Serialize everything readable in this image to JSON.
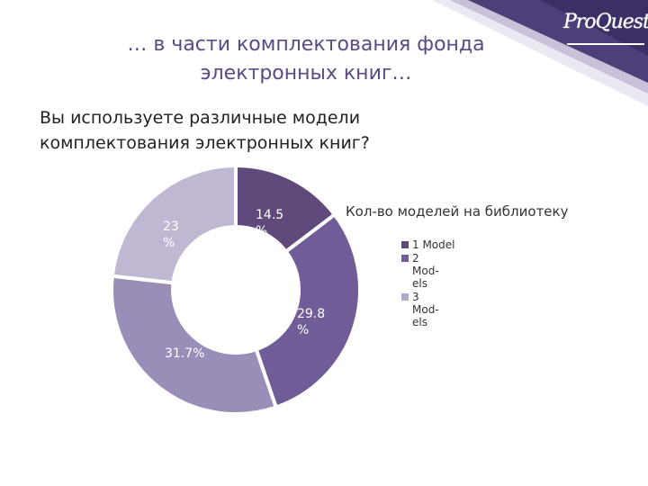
{
  "slide": {
    "title_line1": "… в части комплектования фонда",
    "title_line2": "электронных книг…",
    "question_line1": "Вы используете различные модели",
    "question_line2": "комплектования электронных книг?",
    "logo_text": "ProQuest"
  },
  "chart_data": {
    "type": "pie",
    "subtype": "donut",
    "title": "Кол-во моделей на библиотеку",
    "legend_position": "right",
    "categories": [
      "1 Model",
      "2 Mod- els",
      "3 Mod- els",
      ""
    ],
    "values": [
      14.5,
      29.8,
      31.7,
      23
    ],
    "data_labels": [
      "14.5 %",
      "29.8 %",
      "31.7%",
      "23 %"
    ],
    "legend": [
      {
        "label": "1 Model",
        "color": "#604a7b"
      },
      {
        "label": "2 Mod- els",
        "color": "#705c97"
      },
      {
        "label": "3 Mod- els",
        "color": "#b3a8c8"
      }
    ],
    "colors": [
      "#604a7b",
      "#705c97",
      "#9a8db8",
      "#c0b7d3"
    ]
  }
}
